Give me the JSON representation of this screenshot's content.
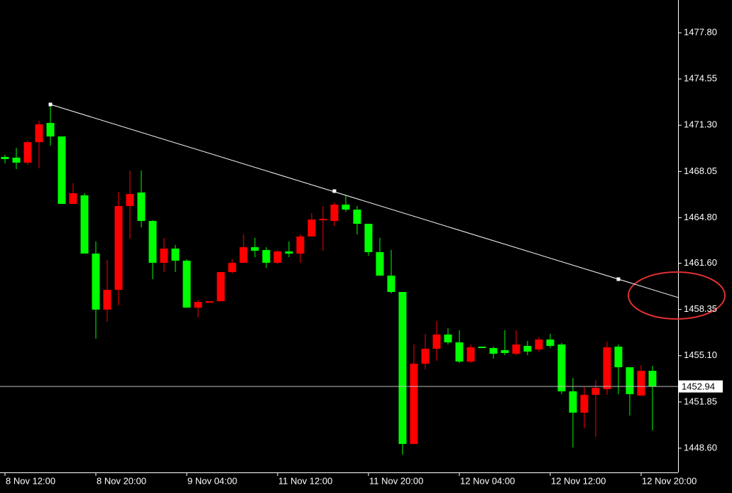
{
  "chart_data": {
    "type": "candlestick",
    "categories": [
      "8 Nov 12:00",
      null,
      null,
      null,
      null,
      null,
      null,
      null,
      "8 Nov 20:00",
      null,
      null,
      null,
      null,
      null,
      null,
      null,
      "9 Nov 04:00",
      null,
      null,
      null,
      null,
      null,
      null,
      null,
      "11 Nov 12:00",
      null,
      null,
      null,
      null,
      null,
      null,
      null,
      "11 Nov 20:00",
      null,
      null,
      null,
      null,
      null,
      null,
      null,
      "12 Nov 04:00",
      null,
      null,
      null,
      null,
      null,
      null,
      null,
      "12 Nov 12:00",
      null,
      null,
      null,
      null,
      null,
      null,
      null,
      "12 Nov 20:00",
      null
    ],
    "open": [
      1469.07,
      1469.02,
      1468.67,
      1470.11,
      1471.46,
      1470.51,
      1465.77,
      1466.37,
      1462.28,
      1458.34,
      1459.73,
      1465.62,
      1466.57,
      1464.57,
      1461.63,
      1462.63,
      1461.78,
      1458.48,
      1458.83,
      1458.93,
      1460.98,
      1461.63,
      1462.73,
      1462.53,
      1461.63,
      1462.43,
      1462.28,
      1463.48,
      1464.62,
      1464.57,
      1465.72,
      1465.37,
      1464.37,
      1462.38,
      1460.73,
      1459.58,
      1448.9,
      1454.54,
      1455.59,
      1456.59,
      1456.04,
      1454.69,
      1455.74,
      1455.64,
      1455.49,
      1455.24,
      1455.79,
      1455.54,
      1456.24,
      1455.89,
      1452.6,
      1451.1,
      1452.35,
      1452.75,
      1455.74,
      1454.29,
      1452.3,
      1454.04
    ],
    "high": [
      1469.22,
      1469.71,
      1470.21,
      1471.61,
      1472.76,
      1470.51,
      1467.22,
      1466.52,
      1463.13,
      1461.83,
      1466.62,
      1468.12,
      1468.12,
      1464.62,
      1463.38,
      1462.88,
      1461.88,
      1459.03,
      1458.93,
      1460.98,
      1461.88,
      1463.63,
      1463.38,
      1462.73,
      1462.53,
      1463.13,
      1463.63,
      1465.12,
      1465.62,
      1465.87,
      1466.37,
      1465.62,
      1464.37,
      1463.38,
      1462.53,
      1459.58,
      1455.89,
      1456.64,
      1457.54,
      1457.04,
      1456.89,
      1455.89,
      1455.74,
      1455.74,
      1456.89,
      1456.89,
      1456.14,
      1456.39,
      1456.64,
      1455.99,
      1453.54,
      1452.89,
      1453.39,
      1456.09,
      1455.89,
      1454.29,
      1454.44,
      1454.39
    ],
    "low": [
      1468.62,
      1468.22,
      1468.52,
      1468.27,
      1469.86,
      1465.77,
      1465.77,
      1462.28,
      1456.29,
      1457.49,
      1458.63,
      1463.33,
      1464.12,
      1460.48,
      1460.98,
      1460.98,
      1458.48,
      1457.79,
      1458.83,
      1458.93,
      1460.88,
      1461.63,
      1462.03,
      1461.28,
      1461.53,
      1462.03,
      1461.63,
      1463.48,
      1462.48,
      1464.22,
      1465.22,
      1463.63,
      1462.13,
      1460.73,
      1459.48,
      1448.15,
      1448.9,
      1454.14,
      1454.74,
      1455.89,
      1454.59,
      1454.59,
      1455.64,
      1454.89,
      1455.14,
      1455.14,
      1455.14,
      1455.39,
      1455.64,
      1452.4,
      1448.65,
      1450.0,
      1449.4,
      1452.35,
      1452.4,
      1450.9,
      1452.3,
      1449.85
    ],
    "close": [
      1468.92,
      1468.67,
      1470.11,
      1471.36,
      1470.51,
      1465.77,
      1466.52,
      1462.28,
      1458.34,
      1459.73,
      1465.62,
      1466.47,
      1464.57,
      1461.63,
      1462.63,
      1461.78,
      1458.48,
      1458.88,
      1458.93,
      1460.98,
      1461.63,
      1462.73,
      1462.48,
      1461.63,
      1462.43,
      1462.28,
      1463.48,
      1464.67,
      1464.72,
      1465.72,
      1465.37,
      1464.37,
      1462.38,
      1460.73,
      1459.58,
      1448.9,
      1454.54,
      1455.59,
      1456.59,
      1456.04,
      1454.69,
      1455.69,
      1455.64,
      1455.24,
      1455.29,
      1455.89,
      1455.39,
      1456.24,
      1455.79,
      1452.6,
      1451.1,
      1452.35,
      1452.84,
      1455.69,
      1454.29,
      1452.4,
      1454.04,
      1452.94
    ],
    "up_color": "#ff0000",
    "down_color": "#00ff00",
    "trendline": {
      "color": "#ffffff",
      "values": [
        null,
        null,
        null,
        null,
        1472.76,
        null,
        null,
        null,
        null,
        null,
        null,
        null,
        null,
        null,
        null,
        null,
        null,
        null,
        null,
        null,
        null,
        null,
        null,
        null,
        null,
        null,
        null,
        null,
        null,
        1466.67,
        null,
        null,
        null,
        null,
        null,
        null,
        null,
        null,
        null,
        null,
        null,
        null,
        null,
        null,
        null,
        null,
        null,
        null,
        null,
        null,
        null,
        null,
        null,
        null,
        1460.48,
        null,
        null,
        null
      ]
    },
    "current_price": 1452.94,
    "current_price_line_color": "#c0c0c0",
    "ylim": [
      1446.9,
      1480.1
    ],
    "yticks": [
      {
        "value": 1477.8,
        "label": "1477.80"
      },
      1474.55,
      {
        "value": 1471.3,
        "label": "1471.30"
      },
      1468.05,
      {
        "value": 1464.8,
        "label": "1464.80"
      },
      {
        "value": 1461.6,
        "label": "1461.60"
      },
      1458.35,
      {
        "value": 1455.1,
        "label": "1455.10"
      },
      1451.85,
      {
        "value": 1448.6,
        "label": "1448.60"
      }
    ]
  }
}
